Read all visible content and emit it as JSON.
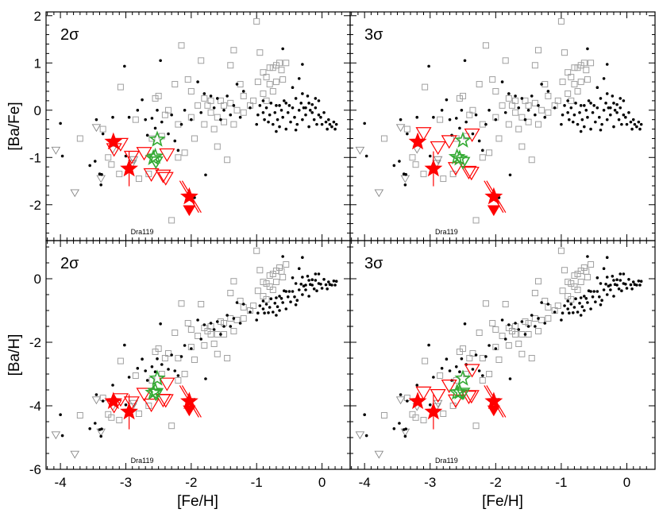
{
  "chart_data": {
    "type": "scatter",
    "xlabel": "[Fe/H]",
    "xlim": [
      -4.22,
      0.43
    ],
    "xticks": [
      "-4",
      "-3",
      "-2",
      "-1",
      "0"
    ],
    "xtick_values": [
      -4,
      -3,
      -2,
      -1,
      0
    ],
    "top_row": {
      "ylabel": "[Ba/Fe]",
      "ylim": [
        -2.76,
        2.08
      ],
      "yticks": [
        "2",
        "1",
        "0",
        "-1",
        "-2"
      ],
      "ytick_values": [
        2,
        1,
        0,
        -1,
        -2
      ]
    },
    "bottom_row": {
      "ylabel": "[Ba/H]",
      "ylim": [
        -6,
        1.2
      ],
      "yticks": [
        "0",
        "-2",
        "-4",
        "-6"
      ],
      "ytick_values": [
        0,
        -2,
        -4,
        -6
      ]
    },
    "annotation": "Dra119",
    "colors": {
      "red": "#ff0000",
      "green": "#33aa33",
      "field_dot": "#000000",
      "field_square": "#a0a0a0"
    },
    "field_dots_feh_bafe": [
      [
        -4.0,
        -0.28
      ],
      [
        -3.97,
        -0.97
      ],
      [
        -3.55,
        -1.17
      ],
      [
        -3.47,
        -1.08
      ],
      [
        -3.4,
        -1.35
      ],
      [
        -3.38,
        -1.58
      ],
      [
        -3.37,
        -1.36
      ],
      [
        -3.45,
        -0.2
      ],
      [
        -3.35,
        -0.5
      ],
      [
        -3.2,
        -0.15
      ],
      [
        -3.02,
        0.93
      ],
      [
        -3.0,
        -0.97
      ],
      [
        -2.95,
        -0.15
      ],
      [
        -2.82,
        0.0
      ],
      [
        -2.75,
        0.22
      ],
      [
        -2.7,
        -0.2
      ],
      [
        -2.67,
        -0.53
      ],
      [
        -2.6,
        -0.17
      ],
      [
        -2.52,
        0.0
      ],
      [
        -2.47,
        1.05
      ],
      [
        -2.55,
        -0.38
      ],
      [
        -2.45,
        -0.25
      ],
      [
        -2.35,
        -0.5
      ],
      [
        -2.25,
        -0.65
      ],
      [
        -2.2,
        -0.85
      ],
      [
        -1.95,
        -1.85
      ],
      [
        -1.78,
        -1.37
      ],
      [
        -1.9,
        0.6
      ],
      [
        -1.8,
        0.35
      ],
      [
        -2.1,
        0.0
      ],
      [
        -2.0,
        -0.2
      ],
      [
        -1.7,
        0.3
      ],
      [
        -1.6,
        0.25
      ],
      [
        -1.5,
        0.0
      ],
      [
        -1.45,
        0.3
      ],
      [
        -1.4,
        -0.1
      ],
      [
        -1.3,
        0.55
      ],
      [
        -1.2,
        0.4
      ],
      [
        -1.0,
        -0.3
      ],
      [
        -0.6,
        1.3
      ],
      [
        -0.3,
        0.97
      ],
      [
        -0.35,
        0.67
      ],
      [
        -0.45,
        0.48
      ],
      [
        -2.3,
        -0.1
      ],
      [
        -2.15,
        -0.3
      ],
      [
        -1.85,
        -0.05
      ],
      [
        -1.65,
        0.05
      ],
      [
        -1.55,
        -0.2
      ],
      [
        -1.35,
        0.1
      ],
      [
        -1.25,
        -0.15
      ],
      [
        -1.1,
        0.05
      ],
      [
        -0.98,
        -0.1
      ],
      [
        -0.95,
        0.1
      ],
      [
        -0.9,
        -0.05
      ],
      [
        -0.88,
        -0.2
      ],
      [
        -0.85,
        0.05
      ],
      [
        -0.82,
        -0.25
      ],
      [
        -0.8,
        -0.1
      ],
      [
        -0.78,
        0.15
      ],
      [
        -0.75,
        -0.3
      ],
      [
        -0.72,
        -0.05
      ],
      [
        -0.7,
        0.1
      ],
      [
        -0.68,
        -0.2
      ],
      [
        -0.65,
        -0.35
      ],
      [
        -0.62,
        0.0
      ],
      [
        -0.6,
        -0.15
      ],
      [
        -0.58,
        0.2
      ],
      [
        -0.55,
        -0.4
      ],
      [
        -0.52,
        -0.05
      ],
      [
        -0.5,
        0.1
      ],
      [
        -0.48,
        -0.25
      ],
      [
        -0.45,
        0.05
      ],
      [
        -0.42,
        -0.15
      ],
      [
        -0.4,
        0.25
      ],
      [
        -0.38,
        -0.3
      ],
      [
        -0.35,
        0.0
      ],
      [
        -0.32,
        0.15
      ],
      [
        -0.3,
        -0.2
      ],
      [
        -0.28,
        0.05
      ],
      [
        -0.25,
        -0.1
      ],
      [
        -0.22,
        0.3
      ],
      [
        -0.2,
        -0.35
      ],
      [
        -0.18,
        0.0
      ],
      [
        -0.15,
        0.12
      ],
      [
        -0.12,
        -0.2
      ],
      [
        -0.1,
        0.05
      ],
      [
        -0.08,
        -0.3
      ],
      [
        -0.05,
        0.2
      ],
      [
        -0.02,
        -0.15
      ],
      [
        0.0,
        -0.3
      ],
      [
        0.03,
        -0.05
      ],
      [
        0.06,
        -0.25
      ],
      [
        0.08,
        -0.4
      ],
      [
        0.1,
        -0.2
      ],
      [
        0.12,
        -0.3
      ],
      [
        0.15,
        -0.35
      ],
      [
        0.18,
        -0.25
      ],
      [
        0.2,
        -0.4
      ],
      [
        0.22,
        -0.3
      ],
      [
        -0.7,
        -0.45
      ],
      [
        -0.4,
        -0.42
      ],
      [
        -0.2,
        0.15
      ],
      [
        -0.3,
        0.35
      ],
      [
        -0.15,
        -0.05
      ],
      [
        -0.55,
        0.15
      ],
      [
        -0.65,
        0.1
      ],
      [
        -0.9,
        0.2
      ],
      [
        -0.05,
        -0.1
      ],
      [
        -0.25,
        0.05
      ],
      [
        -0.1,
        0.25
      ]
    ],
    "field_squares_feh_bafe": [
      [
        -3.7,
        -0.6
      ],
      [
        -3.35,
        -0.4
      ],
      [
        -3.27,
        -1.0
      ],
      [
        -3.22,
        -1.15
      ],
      [
        -3.08,
        0.49
      ],
      [
        -3.1,
        -1.35
      ],
      [
        -2.85,
        -0.2
      ],
      [
        -2.8,
        -1.45
      ],
      [
        -2.65,
        -1.35
      ],
      [
        -2.55,
        0.25
      ],
      [
        -2.5,
        0.3
      ],
      [
        -2.35,
        0.0
      ],
      [
        -2.25,
        0.55
      ],
      [
        -2.2,
        -1.0
      ],
      [
        -2.15,
        1.37
      ],
      [
        -2.1,
        -0.9
      ],
      [
        -2.05,
        0.65
      ],
      [
        -1.95,
        -0.6
      ],
      [
        -1.85,
        1.05
      ],
      [
        -1.8,
        0.25
      ],
      [
        -1.65,
        -0.4
      ],
      [
        -1.6,
        -0.77
      ],
      [
        -1.55,
        0.2
      ],
      [
        -1.5,
        0.1
      ],
      [
        -1.45,
        -1.05
      ],
      [
        -1.4,
        0.95
      ],
      [
        -1.35,
        1.27
      ],
      [
        -1.25,
        0.55
      ],
      [
        -1.2,
        0.3
      ],
      [
        -1.1,
        0.1
      ],
      [
        -1.0,
        1.88
      ],
      [
        -0.98,
        0.6
      ],
      [
        -0.95,
        1.22
      ],
      [
        -0.9,
        0.8
      ],
      [
        -0.85,
        0.7
      ],
      [
        -0.8,
        0.55
      ],
      [
        -0.75,
        0.9
      ],
      [
        -0.7,
        0.95
      ],
      [
        -0.65,
        1.0
      ],
      [
        -0.6,
        0.65
      ],
      [
        -0.55,
        1.0
      ],
      [
        -2.3,
        -2.33
      ],
      [
        -1.75,
        0.1
      ],
      [
        -1.7,
        -0.05
      ],
      [
        -1.9,
        0.1
      ],
      [
        -1.3,
        0.0
      ],
      [
        -1.6,
        -0.15
      ],
      [
        -1.35,
        -0.3
      ],
      [
        -2.4,
        -0.1
      ],
      [
        -2.0,
        0.4
      ],
      [
        -2.6,
        -0.6
      ],
      [
        -2.45,
        -0.55
      ],
      [
        -2.2,
        -0.3
      ],
      [
        -2.0,
        -0.15
      ],
      [
        -1.8,
        -0.3
      ],
      [
        -1.7,
        0.2
      ],
      [
        -1.5,
        -0.25
      ],
      [
        -1.4,
        0.15
      ],
      [
        -1.2,
        -0.05
      ],
      [
        -1.05,
        0.2
      ],
      [
        -0.9,
        0.35
      ],
      [
        -0.85,
        0.2
      ],
      [
        -0.8,
        0.9
      ],
      [
        -0.7,
        0.6
      ],
      [
        -0.62,
        0.85
      ],
      [
        -0.75,
        0.4
      ]
    ],
    "panels": [
      {
        "label": "2σ",
        "red_stars": [
          [
            -3.19,
            -0.67
          ],
          [
            -2.95,
            -1.24
          ],
          [
            -2.03,
            -1.83
          ]
        ],
        "red_upper_limits": [
          [
            -3.18,
            -0.83
          ],
          [
            -3.08,
            -0.72
          ],
          [
            -2.91,
            -0.99
          ],
          [
            -2.72,
            -0.91
          ],
          [
            -2.37,
            -0.94
          ],
          [
            -2.61,
            -1.36
          ],
          [
            -2.43,
            -1.39
          ],
          [
            -2.39,
            -1.44
          ]
        ],
        "red_filled_limit": [
          -2.03,
          -2.12
        ],
        "green_stars": [
          [
            -2.52,
            -0.62
          ],
          [
            -2.58,
            -1.01
          ],
          [
            -2.55,
            -0.98
          ]
        ],
        "green_upper_limits": [
          [
            -2.54,
            -1.1
          ]
        ]
      },
      {
        "label": "3σ",
        "red_stars": [
          [
            -3.19,
            -0.67
          ],
          [
            -2.95,
            -1.24
          ],
          [
            -2.03,
            -1.83
          ]
        ],
        "red_upper_limits": [
          [
            -3.1,
            -0.49
          ],
          [
            -2.88,
            -0.79
          ],
          [
            -2.71,
            -0.66
          ],
          [
            -2.36,
            -0.52
          ],
          [
            -2.61,
            -1.23
          ],
          [
            -2.41,
            -1.31
          ],
          [
            -2.37,
            -1.33
          ]
        ],
        "red_filled_limit": [
          -2.03,
          -2.12
        ],
        "green_stars": [
          [
            -2.5,
            -0.64
          ],
          [
            -2.59,
            -0.99
          ],
          [
            -2.55,
            -1.02
          ]
        ],
        "green_upper_limits": [
          [
            -2.5,
            -1.11
          ]
        ]
      }
    ],
    "gray_upper_limits_feh_bafe": [
      [
        -4.07,
        -0.85
      ],
      [
        -3.78,
        -1.75
      ],
      [
        -3.45,
        -0.37
      ],
      [
        -3.38,
        -1.45
      ],
      [
        -3.2,
        -0.83
      ],
      [
        -2.9,
        -1.13
      ],
      [
        -2.88,
        -1.05
      ]
    ]
  }
}
